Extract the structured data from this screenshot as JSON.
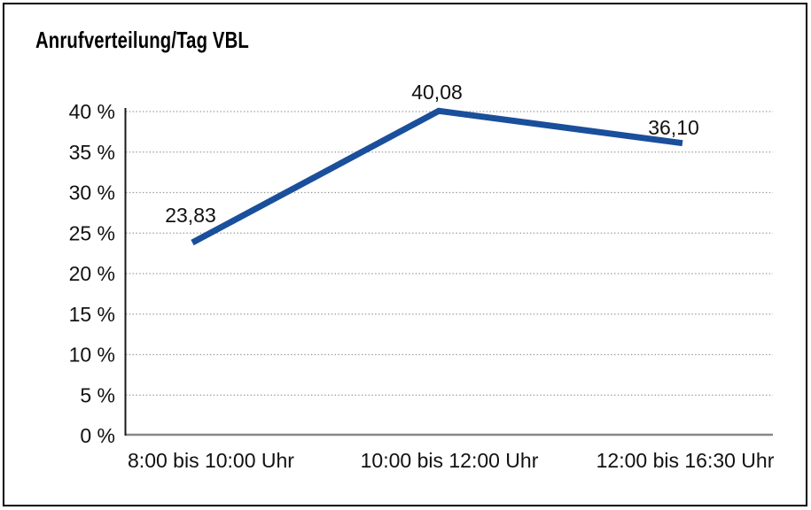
{
  "window": {
    "background_color": "#ffffff",
    "border_color": "#000000"
  },
  "chart_data": {
    "type": "line",
    "title": "Anrufverteilung/Tag VBL",
    "categories": [
      "8:00 bis 10:00 Uhr",
      "10:00 bis 12:00 Uhr",
      "12:00 bis 16:30 Uhr"
    ],
    "values": [
      23.83,
      40.08,
      36.1
    ],
    "value_labels": [
      "23,83",
      "40,08",
      "36,10"
    ],
    "xlabel": "",
    "ylabel": "",
    "ylim": [
      0,
      40
    ],
    "yticks": [
      0,
      5,
      10,
      15,
      20,
      25,
      30,
      35,
      40
    ],
    "ytick_labels": [
      "0 %",
      "5 %",
      "10 %",
      "15 %",
      "20 %",
      "25 %",
      "30 %",
      "35 %",
      "40 %"
    ],
    "grid": "horizontal-dotted",
    "legend": "none",
    "line_color": "#1A4F9B",
    "gridline_color": "#999999",
    "baseline_color": "#878787",
    "yaxis_color": "#1a1a1a",
    "text_color": "#111111"
  }
}
